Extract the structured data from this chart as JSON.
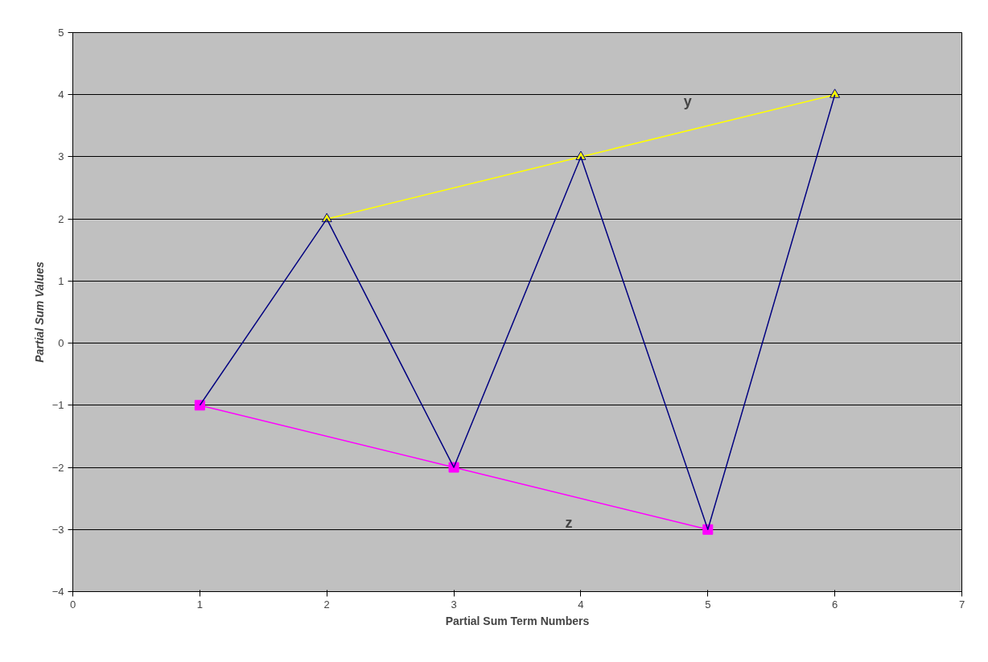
{
  "chart_data": {
    "type": "line",
    "xlabel": "Partial Sum Term Numbers",
    "ylabel": "Partial Sum Values",
    "xlim": [
      0,
      7
    ],
    "xticks": [
      0,
      1,
      2,
      3,
      4,
      5,
      6,
      7
    ],
    "ylim": [
      -4,
      5
    ],
    "yticks": [
      -4,
      -3,
      -2,
      -1,
      0,
      1,
      2,
      3,
      4,
      5
    ],
    "grid": "y",
    "series": [
      {
        "name": "y",
        "color": "#ffff00",
        "x": [
          2,
          4,
          6
        ],
        "values": [
          2,
          3,
          4
        ],
        "marker": "triangle"
      },
      {
        "name": "z",
        "color": "#ff00ff",
        "x": [
          1,
          3,
          5
        ],
        "values": [
          -1,
          -2,
          -3
        ],
        "marker": "square"
      },
      {
        "color": "#000080",
        "x": [
          1,
          2,
          3,
          4,
          5,
          6
        ],
        "values": [
          -1,
          2,
          -2,
          3,
          -3,
          4
        ]
      }
    ]
  }
}
